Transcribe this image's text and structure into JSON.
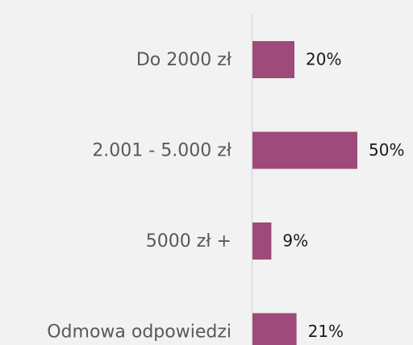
{
  "chart_data": {
    "type": "bar",
    "orientation": "horizontal",
    "categories": [
      "Do 2000 zł",
      "2.001 - 5.000 zł",
      "5000 zł +",
      "Odmowa odpowiedzi"
    ],
    "values": [
      20,
      50,
      9,
      21
    ],
    "value_labels": [
      "20%",
      "50%",
      "9%",
      "21%"
    ],
    "color": "#9e4a7a"
  }
}
